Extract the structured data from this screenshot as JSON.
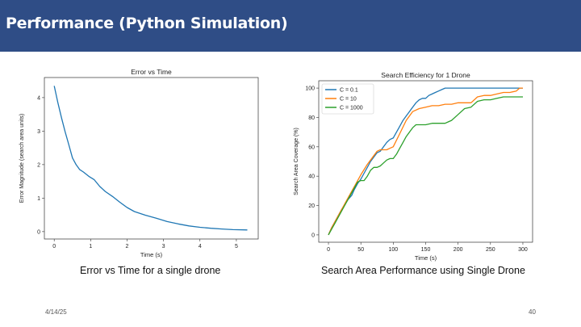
{
  "slide": {
    "title": "Performance (Python Simulation)",
    "date": "4/14/25",
    "page_number": "40",
    "header_color": "#2f4d86"
  },
  "captions": {
    "left": "Error vs Time for a single drone",
    "right": "Search Area Performance using Single Drone"
  },
  "chart_data": [
    {
      "type": "line",
      "title": "Error vs Time",
      "xlabel": "Time (s)",
      "ylabel": "Error Magnitude (search area units)",
      "xlim": [
        -0.27,
        5.6
      ],
      "ylim": [
        -0.22,
        4.6
      ],
      "xticks": [
        0,
        1,
        2,
        3,
        4,
        5
      ],
      "yticks": [
        0,
        1,
        2,
        3,
        4
      ],
      "grid": false,
      "series": [
        {
          "color": "#1f77b4",
          "x": [
            0,
            0.1,
            0.2,
            0.3,
            0.4,
            0.5,
            0.6,
            0.7,
            0.8,
            0.95,
            1.1,
            1.25,
            1.4,
            1.6,
            1.8,
            2.0,
            2.2,
            2.5,
            2.8,
            3.1,
            3.4,
            3.7,
            4.0,
            4.3,
            4.6,
            4.9,
            5.3
          ],
          "y": [
            4.35,
            3.85,
            3.4,
            2.98,
            2.6,
            2.2,
            2.0,
            1.85,
            1.78,
            1.65,
            1.55,
            1.35,
            1.2,
            1.05,
            0.88,
            0.72,
            0.6,
            0.49,
            0.4,
            0.3,
            0.23,
            0.17,
            0.13,
            0.1,
            0.08,
            0.06,
            0.05
          ]
        }
      ]
    },
    {
      "type": "line",
      "title": "Search Efficiency for 1 Drone",
      "xlabel": "Time (s)",
      "ylabel": "Search Area Coverage (%)",
      "xlim": [
        -15,
        315
      ],
      "ylim": [
        -5,
        105
      ],
      "xticks": [
        0,
        50,
        100,
        150,
        200,
        250,
        300
      ],
      "yticks": [
        0,
        20,
        40,
        60,
        80,
        100
      ],
      "grid": false,
      "legend": "top-left",
      "series": [
        {
          "name": "C = 0.1",
          "color": "#1f77b4",
          "x": [
            0,
            5,
            10,
            20,
            30,
            36,
            40,
            45,
            50,
            55,
            60,
            65,
            70,
            75,
            80,
            85,
            90,
            95,
            100,
            105,
            110,
            115,
            120,
            125,
            130,
            135,
            140,
            145,
            150,
            155,
            160,
            165,
            170,
            175,
            180,
            190,
            200,
            220,
            240,
            260,
            280,
            300
          ],
          "y": [
            0,
            5,
            9,
            17,
            24,
            27,
            31,
            35,
            38,
            42,
            46,
            50,
            53,
            56,
            57,
            60,
            63,
            65,
            66,
            70,
            74,
            78,
            81,
            84,
            87,
            90,
            92,
            93,
            93,
            95,
            96,
            97,
            98,
            99,
            100,
            100,
            100,
            100,
            100,
            100,
            100,
            100
          ]
        },
        {
          "name": "C = 10",
          "color": "#ff7f0e",
          "x": [
            0,
            5,
            10,
            20,
            30,
            40,
            50,
            60,
            70,
            75,
            80,
            85,
            90,
            95,
            100,
            110,
            120,
            130,
            140,
            150,
            160,
            170,
            180,
            190,
            200,
            210,
            220,
            230,
            240,
            250,
            260,
            270,
            280,
            290,
            295,
            300
          ],
          "y": [
            0,
            5,
            9,
            17,
            25,
            33,
            41,
            48,
            54,
            57,
            58,
            58,
            58,
            59,
            60,
            69,
            78,
            84,
            86,
            87,
            88,
            88,
            89,
            89,
            90,
            90,
            90,
            94,
            95,
            95,
            96,
            97,
            97,
            98,
            100,
            100
          ]
        },
        {
          "name": "C = 1000",
          "color": "#2ca02c",
          "x": [
            0,
            5,
            10,
            20,
            30,
            40,
            45,
            50,
            55,
            60,
            65,
            70,
            75,
            80,
            85,
            90,
            95,
            100,
            105,
            110,
            115,
            120,
            130,
            135,
            140,
            150,
            160,
            170,
            180,
            185,
            190,
            200,
            210,
            220,
            230,
            240,
            250,
            260,
            270,
            280,
            290,
            300
          ],
          "y": [
            0,
            4,
            8,
            16,
            24,
            32,
            36,
            37,
            37,
            40,
            44,
            46,
            46,
            47,
            49,
            51,
            52,
            52,
            55,
            59,
            63,
            67,
            73,
            75,
            75,
            75,
            76,
            76,
            76,
            77,
            78,
            82,
            86,
            87,
            91,
            92,
            92,
            93,
            94,
            94,
            94,
            94
          ]
        }
      ]
    }
  ]
}
